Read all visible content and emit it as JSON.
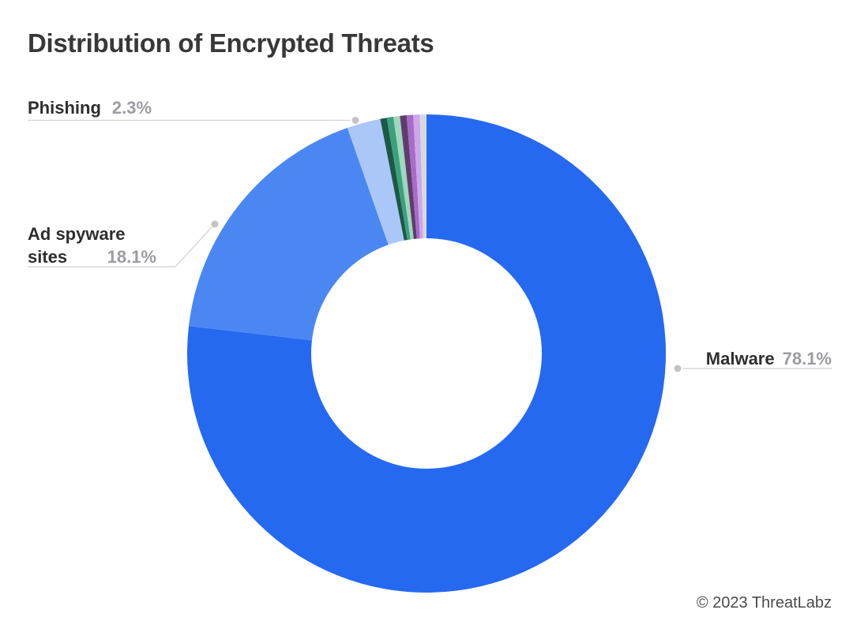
{
  "title": "Distribution of Encrypted Threats",
  "footer": "© 2023 ThreatLabz",
  "callouts": {
    "phishing": {
      "label": "Phishing",
      "value": "2.3%"
    },
    "ad_spyware": {
      "label_line1": "Ad spyware",
      "label_line2": "sites",
      "value": "18.1%"
    },
    "malware": {
      "label": "Malware",
      "value": "78.1%"
    }
  },
  "chart_data": {
    "type": "pie",
    "style": "donut",
    "title": "Distribution of Encrypted Threats",
    "start_angle_deg": 0,
    "direction": "clockwise",
    "inner_radius_ratio": 0.482,
    "min_slice_render_percent": 0.45,
    "legend": "none",
    "segments": [
      {
        "label": "Malware",
        "value": 78.1,
        "color": "#2569f0",
        "labeled": true
      },
      {
        "label": "Ad spyware sites",
        "value": 18.1,
        "color": "#4a87f2",
        "labeled": true
      },
      {
        "label": "Phishing",
        "value": 2.3,
        "color": "#abc7f8",
        "labeled": true
      },
      {
        "label": "",
        "value": 0.3,
        "color": "#1d5748",
        "labeled": false
      },
      {
        "label": "",
        "value": 0.2,
        "color": "#3aa17c",
        "labeled": false
      },
      {
        "label": "",
        "value": 0.2,
        "color": "#9fd6bd",
        "labeled": false
      },
      {
        "label": "",
        "value": 0.2,
        "color": "#603c6e",
        "labeled": false
      },
      {
        "label": "",
        "value": 0.2,
        "color": "#a76cc9",
        "labeled": false
      },
      {
        "label": "",
        "value": 0.2,
        "color": "#cda7e8",
        "labeled": false
      },
      {
        "label": "",
        "value": 0.2,
        "color": "#d8d8e3",
        "labeled": false
      }
    ]
  },
  "colors": {
    "title_text": "#383838",
    "label_text": "#2e2e2e",
    "value_text": "#9b9ca1",
    "leader_line": "#d9d9d9",
    "leader_dot": "#c4c4c4",
    "background": "#ffffff",
    "donut_hole": "#ffffff"
  }
}
